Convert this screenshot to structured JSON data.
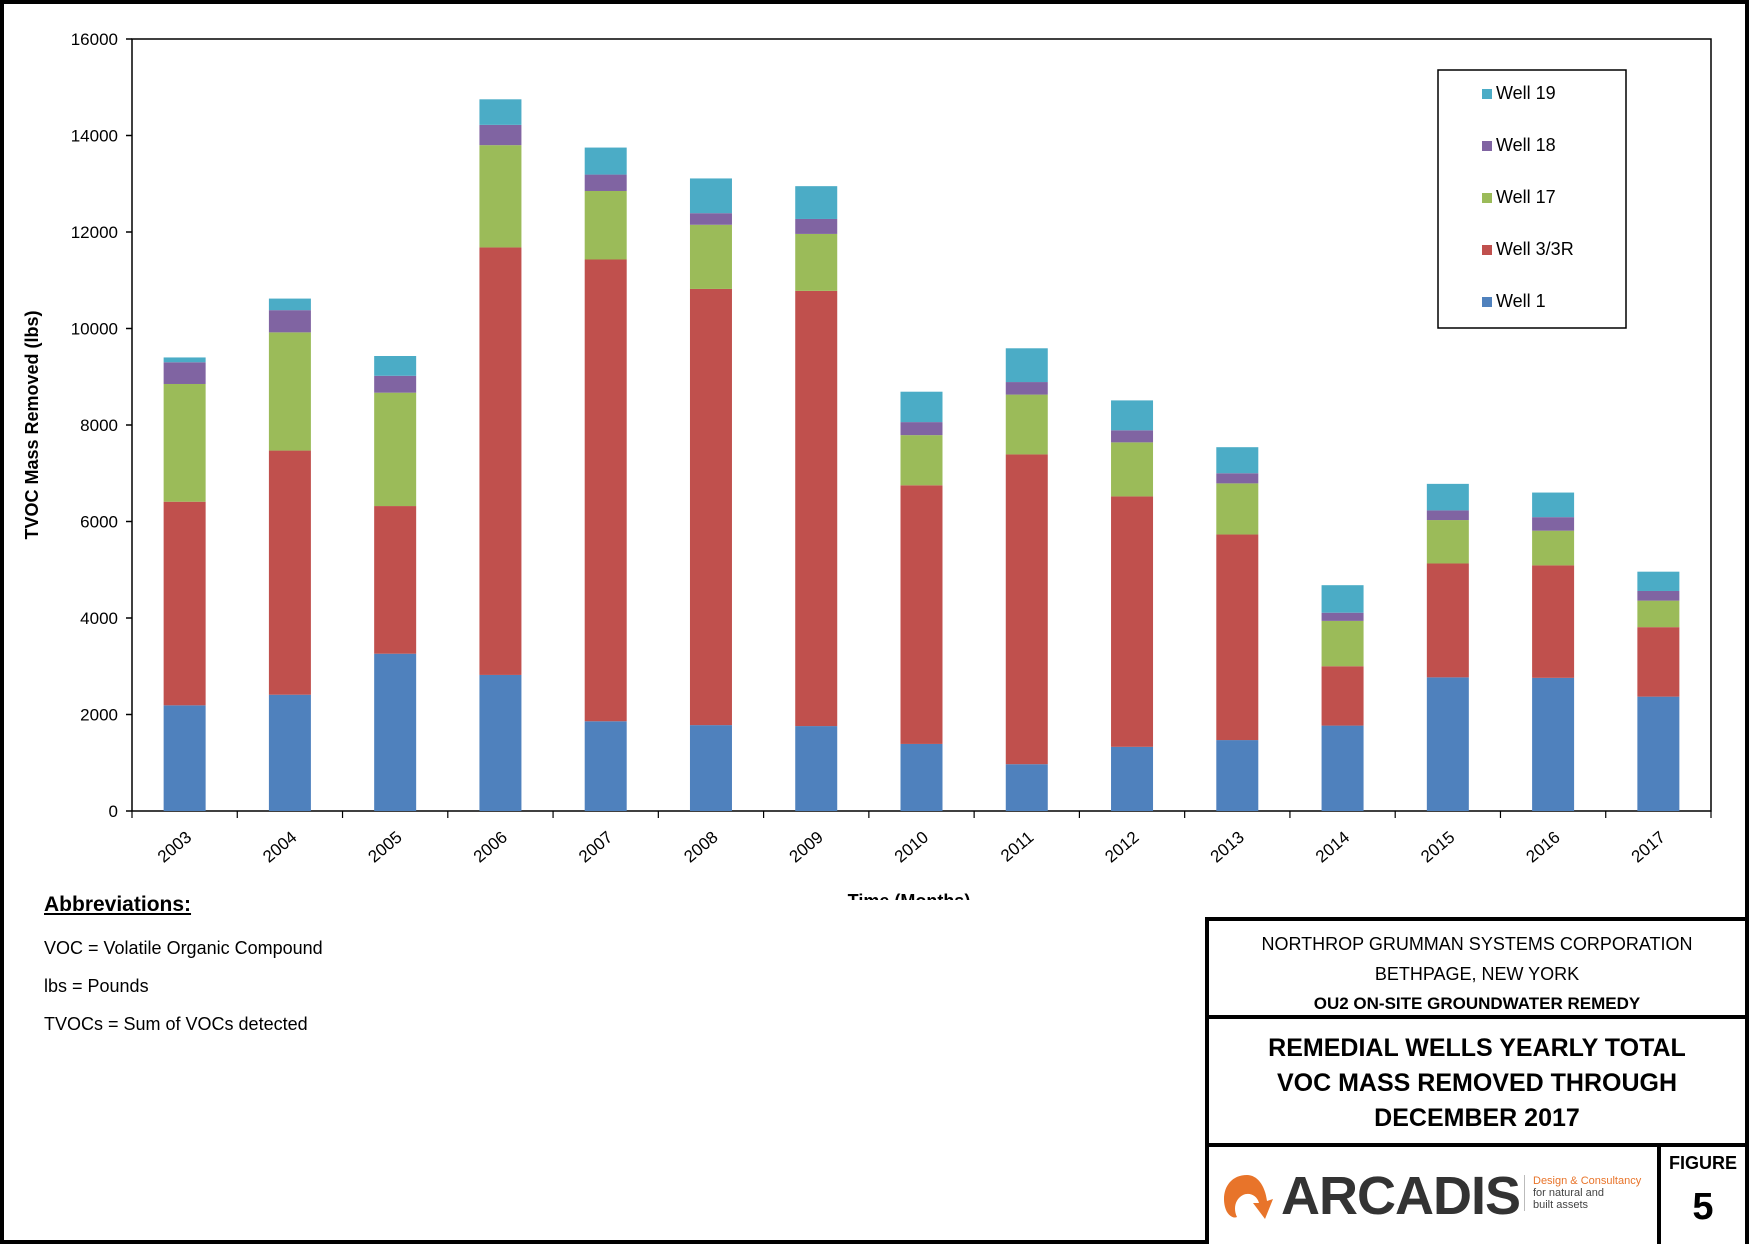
{
  "chart_data": {
    "type": "bar",
    "stacked": true,
    "xlabel": "Time (Months)",
    "ylabel": "TVOC Mass Removed (lbs)",
    "ylim": [
      0,
      16000
    ],
    "yticks": [
      0,
      2000,
      4000,
      6000,
      8000,
      10000,
      12000,
      14000,
      16000
    ],
    "categories": [
      "2003",
      "2004",
      "2005",
      "2006",
      "2007",
      "2008",
      "2009",
      "2010",
      "2011",
      "2012",
      "2013",
      "2014",
      "2015",
      "2016",
      "2017"
    ],
    "legend_position": "top-right",
    "series": [
      {
        "name": "Well 1",
        "color": "#4f81bd",
        "values": [
          2190,
          2410,
          3260,
          2820,
          1860,
          1780,
          1760,
          1390,
          970,
          1330,
          1470,
          1770,
          2770,
          2760,
          2370
        ]
      },
      {
        "name": "Well 3/3R",
        "color": "#c0504d",
        "values": [
          4220,
          5060,
          3060,
          8860,
          9570,
          9040,
          9020,
          5360,
          6420,
          5190,
          4260,
          1230,
          2360,
          2330,
          1440
        ]
      },
      {
        "name": "Well 17",
        "color": "#9bbb59",
        "values": [
          2440,
          2450,
          2350,
          2120,
          1420,
          1330,
          1180,
          1040,
          1240,
          1120,
          1060,
          940,
          900,
          720,
          550
        ]
      },
      {
        "name": "Well 18",
        "color": "#8064a2",
        "values": [
          450,
          460,
          350,
          420,
          340,
          240,
          310,
          270,
          260,
          250,
          210,
          170,
          200,
          280,
          200
        ]
      },
      {
        "name": "Well 19",
        "color": "#4bacc6",
        "values": [
          100,
          240,
          410,
          530,
          560,
          720,
          680,
          630,
          700,
          620,
          540,
          570,
          550,
          510,
          400
        ]
      }
    ]
  },
  "abbreviations": {
    "heading": "Abbreviations:",
    "lines": [
      "VOC = Volatile Organic Compound",
      "lbs = Pounds",
      "TVOCs = Sum of VOCs detected"
    ]
  },
  "title_block": {
    "company": "NORTHROP GRUMMAN SYSTEMS CORPORATION",
    "location": "BETHPAGE, NEW YORK",
    "project": "OU2 ON-SITE GROUNDWATER REMEDY",
    "title_lines": [
      "REMEDIAL WELLS YEARLY TOTAL",
      "VOC MASS REMOVED THROUGH",
      "DECEMBER 2017"
    ],
    "figure_label": "FIGURE",
    "figure_number": "5",
    "logo_text": "ARCADIS",
    "logo_tagline": [
      "Design & Consultancy",
      "for natural and",
      "built assets"
    ],
    "logo_color": "#e8742a"
  }
}
